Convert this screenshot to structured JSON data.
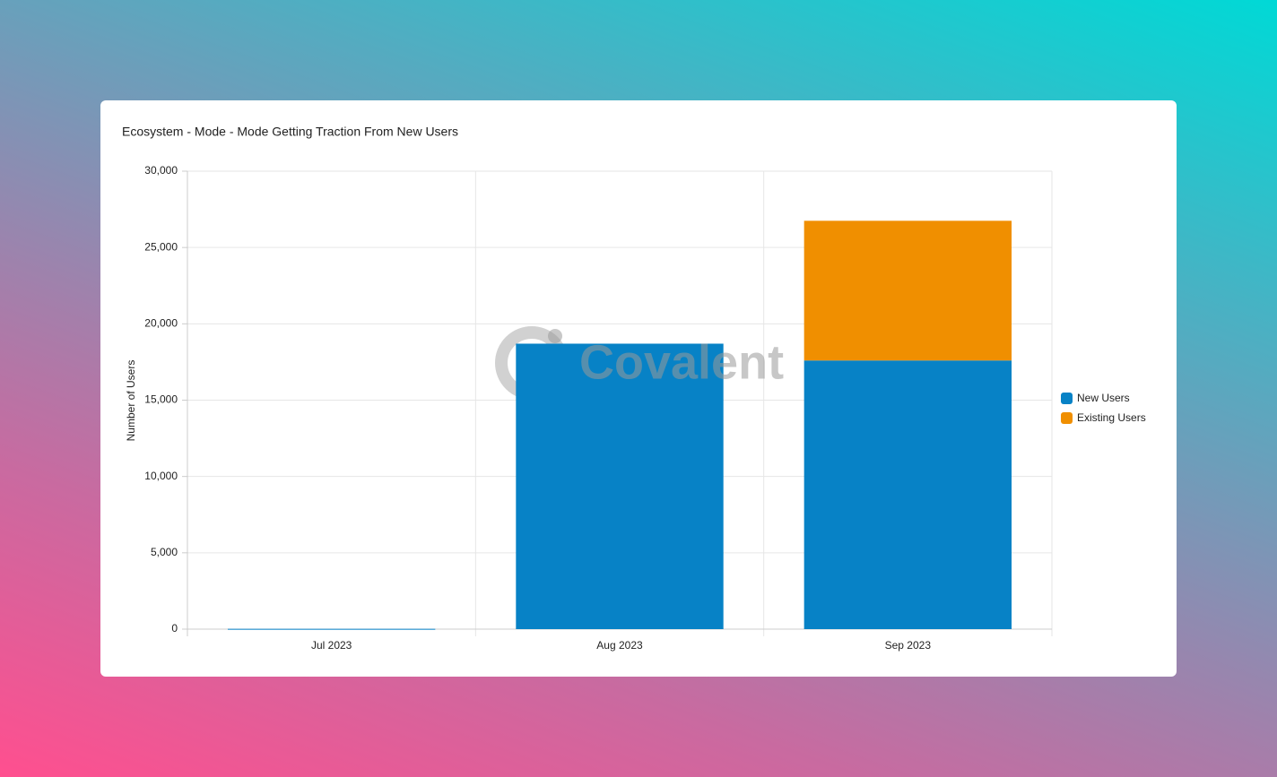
{
  "chart_data": {
    "type": "stacked-bar",
    "title": "Ecosystem - Mode - Mode Getting Traction From New Users",
    "watermark": "Covalent",
    "y_label": "Number of Users",
    "categories": [
      "Jul 2023",
      "Aug 2023",
      "Sep 2023"
    ],
    "series": [
      {
        "name": "New Users",
        "color": "#0782c6",
        "values": [
          20,
          18700,
          17600
        ]
      },
      {
        "name": "Existing Users",
        "color": "#f08f00",
        "values": [
          0,
          0,
          9150
        ]
      }
    ],
    "ylim": [
      0,
      30000
    ],
    "yticks": [
      0,
      {
        "value": 5000,
        "label": "5,000"
      },
      {
        "value": 10000,
        "label": "10,000"
      },
      {
        "value": 15000,
        "label": "15,000"
      },
      {
        "value": 20000,
        "label": "20,000"
      },
      {
        "value": 25000,
        "label": "25,000"
      },
      {
        "value": 30000,
        "label": "30,000"
      }
    ],
    "grid": true,
    "legend": "right"
  }
}
